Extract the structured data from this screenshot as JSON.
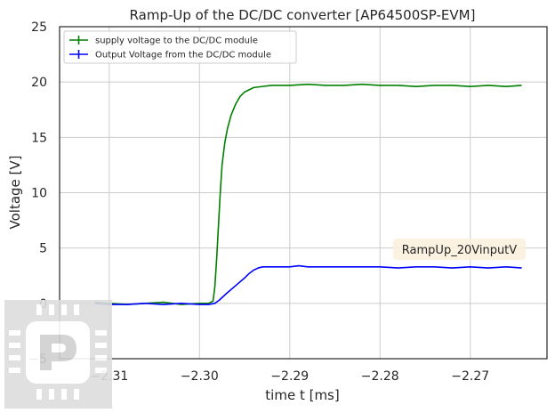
{
  "chart_data": {
    "type": "line",
    "title": "Ramp-Up of the DC/DC converter [AP64500SP-EVM]",
    "xlabel": "time t [ms]",
    "ylabel": "Voltage [V]",
    "xlim": [
      -2.3155,
      -2.2615
    ],
    "ylim": [
      -5,
      25
    ],
    "xticks": [
      -2.31,
      -2.3,
      -2.29,
      -2.28,
      -2.27
    ],
    "xtick_labels": [
      "−2.31",
      "−2.30",
      "−2.29",
      "−2.28",
      "−2.27"
    ],
    "yticks": [
      -5,
      0,
      5,
      10,
      15,
      20,
      25
    ],
    "ytick_labels": [
      "−5",
      "0",
      "5",
      "10",
      "15",
      "20",
      "25"
    ],
    "grid": true,
    "legend_position": "top-left",
    "annotation": "RampUp_20VinputV",
    "series": [
      {
        "name": "supply voltage to the DC/DC module",
        "color": "#008000",
        "x": [
          -2.3116,
          -2.31,
          -2.308,
          -2.306,
          -2.304,
          -2.302,
          -2.3,
          -2.299,
          -2.2985,
          -2.2983,
          -2.2981,
          -2.2979,
          -2.2977,
          -2.2975,
          -2.2972,
          -2.2969,
          -2.2965,
          -2.296,
          -2.2955,
          -2.295,
          -2.2945,
          -2.294,
          -2.293,
          -2.292,
          -2.29,
          -2.288,
          -2.286,
          -2.284,
          -2.282,
          -2.28,
          -2.278,
          -2.276,
          -2.274,
          -2.272,
          -2.27,
          -2.268,
          -2.266,
          -2.2643
        ],
        "y": [
          0.1,
          0.0,
          -0.1,
          0.0,
          0.1,
          -0.1,
          0.0,
          0.0,
          0.2,
          1.5,
          4.0,
          7.0,
          10.0,
          12.5,
          14.5,
          15.8,
          17.0,
          18.0,
          18.7,
          19.1,
          19.3,
          19.5,
          19.6,
          19.7,
          19.7,
          19.8,
          19.7,
          19.7,
          19.8,
          19.7,
          19.7,
          19.6,
          19.7,
          19.7,
          19.6,
          19.7,
          19.6,
          19.7
        ]
      },
      {
        "name": "Output Voltage from the DC/DC module",
        "color": "#0000ff",
        "x": [
          -2.3116,
          -2.31,
          -2.308,
          -2.306,
          -2.304,
          -2.302,
          -2.3,
          -2.299,
          -2.2983,
          -2.2978,
          -2.297,
          -2.296,
          -2.295,
          -2.2945,
          -2.294,
          -2.2935,
          -2.293,
          -2.292,
          -2.29,
          -2.289,
          -2.288,
          -2.286,
          -2.284,
          -2.282,
          -2.28,
          -2.278,
          -2.276,
          -2.274,
          -2.272,
          -2.27,
          -2.268,
          -2.266,
          -2.2643
        ],
        "y": [
          0.0,
          -0.1,
          -0.1,
          0.0,
          -0.1,
          0.0,
          -0.1,
          -0.1,
          0.0,
          0.3,
          0.9,
          1.6,
          2.3,
          2.7,
          3.0,
          3.2,
          3.3,
          3.3,
          3.3,
          3.4,
          3.3,
          3.3,
          3.3,
          3.3,
          3.3,
          3.2,
          3.3,
          3.3,
          3.2,
          3.3,
          3.2,
          3.3,
          3.2
        ]
      }
    ]
  }
}
